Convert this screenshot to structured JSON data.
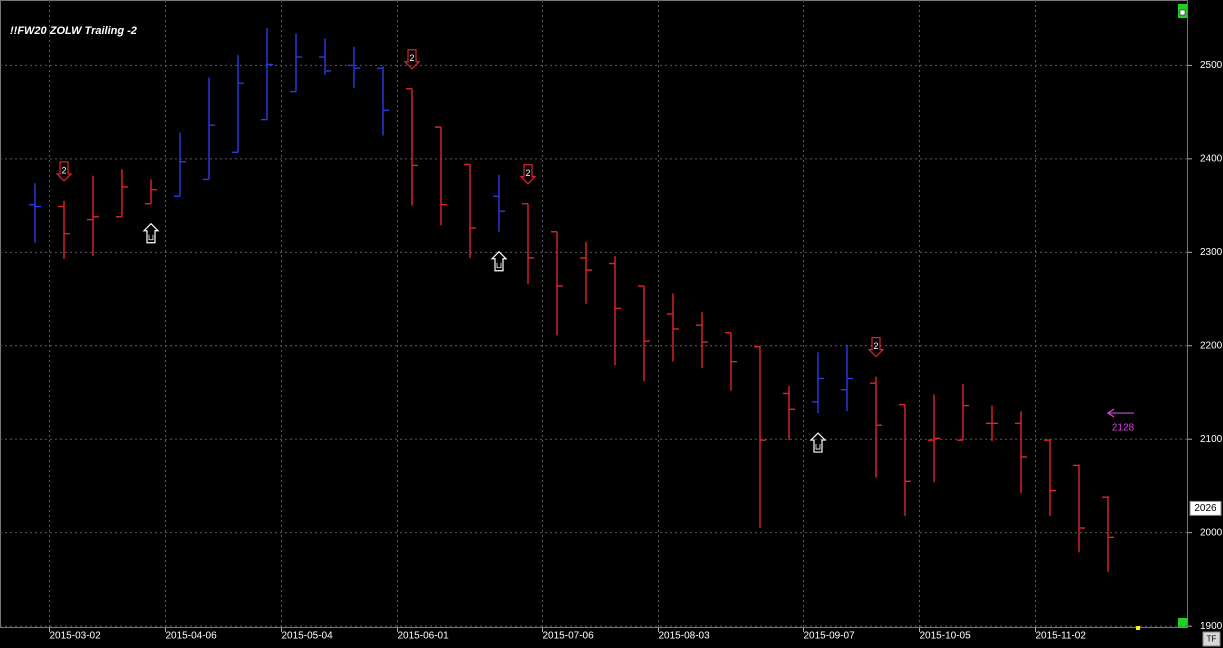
{
  "chart_data": {
    "type": "ohlc",
    "title": "!!FW20 ZOLW Trailing -2",
    "categories": [
      null,
      "2015-03-02",
      null,
      null,
      null,
      "2015-04-06",
      null,
      null,
      null,
      "2015-05-04",
      null,
      null,
      null,
      "2015-06-01",
      null,
      null,
      null,
      null,
      "2015-07-06",
      null,
      null,
      null,
      "2015-08-03",
      null,
      null,
      null,
      null,
      "2015-09-07",
      null,
      null,
      null,
      "2015-10-05",
      null,
      null,
      null,
      "2015-11-02",
      null,
      null
    ],
    "open": [
      2351,
      2349,
      2335,
      2338,
      2352,
      2360,
      2378,
      2407,
      2442,
      2472,
      2509,
      2500,
      2497,
      2475,
      2434,
      2394,
      2360,
      2352,
      2322,
      2294,
      2288,
      2264,
      2234,
      2222,
      2214,
      2199,
      2149,
      2140,
      2153,
      2160,
      2137,
      2099,
      2099,
      2117,
      2117,
      2099,
      2072,
      2038
    ],
    "high": [
      2374,
      2355,
      2382,
      2389,
      2378,
      2428,
      2487,
      2511,
      2540,
      2534,
      2529,
      2520,
      2499,
      2475,
      2434,
      2394,
      2383,
      2352,
      2322,
      2311,
      2296,
      2264,
      2256,
      2236,
      2214,
      2199,
      2157,
      2193,
      2201,
      2167,
      2137,
      2148,
      2159,
      2136,
      2130,
      2100,
      2073,
      2039
    ],
    "low": [
      2310,
      2293,
      2296,
      2338,
      2352,
      2360,
      2378,
      2407,
      2442,
      2472,
      2490,
      2476,
      2425,
      2350,
      2329,
      2294,
      2322,
      2266,
      2211,
      2245,
      2179,
      2162,
      2183,
      2176,
      2152,
      2005,
      2099,
      2128,
      2130,
      2059,
      2018,
      2054,
      2099,
      2098,
      2042,
      2018,
      1979,
      1958
    ],
    "close": [
      2349,
      2320,
      2338,
      2370,
      2367,
      2397,
      2436,
      2481,
      2501,
      2509,
      2494,
      2497,
      2452,
      2393,
      2351,
      2326,
      2344,
      2294,
      2264,
      2281,
      2240,
      2205,
      2218,
      2204,
      2183,
      2099,
      2132,
      2165,
      2165,
      2115,
      2055,
      2101,
      2136,
      2117,
      2081,
      2045,
      2005,
      1995
    ],
    "colors": [
      "#2a3be8",
      "#e0242c",
      "#e0242c",
      "#e0242c",
      "#e0242c",
      "#2a3be8",
      "#2a3be8",
      "#2a3be8",
      "#2a3be8",
      "#2a3be8",
      "#2a3be8",
      "#2a3be8",
      "#2a3be8",
      "#e0242c",
      "#e0242c",
      "#e0242c",
      "#2a3be8",
      "#e0242c",
      "#e0242c",
      "#e0242c",
      "#e0242c",
      "#e0242c",
      "#e0242c",
      "#e0242c",
      "#e0242c",
      "#e0242c",
      "#e0242c",
      "#2a3be8",
      "#2a3be8",
      "#e0242c",
      "#e0242c",
      "#e0242c",
      "#e0242c",
      "#e0242c",
      "#e0242c",
      "#e0242c",
      "#e0242c",
      "#e0242c"
    ],
    "signals": [
      {
        "index": 1,
        "direction": "down",
        "label": "2"
      },
      {
        "index": 4,
        "direction": "up"
      },
      {
        "index": 13,
        "direction": "down",
        "label": "2"
      },
      {
        "index": 16,
        "direction": "up"
      },
      {
        "index": 17,
        "direction": "down",
        "label": "2"
      },
      {
        "index": 27,
        "direction": "up"
      },
      {
        "index": 29,
        "direction": "down",
        "label": "2"
      }
    ],
    "target": 2128,
    "target_color": "#e040e0",
    "last_price": 2026,
    "ylim": [
      1898,
      2570
    ],
    "yticks": [
      1900,
      2000,
      2100,
      2200,
      2300,
      2400,
      2500
    ],
    "grid": true,
    "toolbar_label": "TF"
  }
}
